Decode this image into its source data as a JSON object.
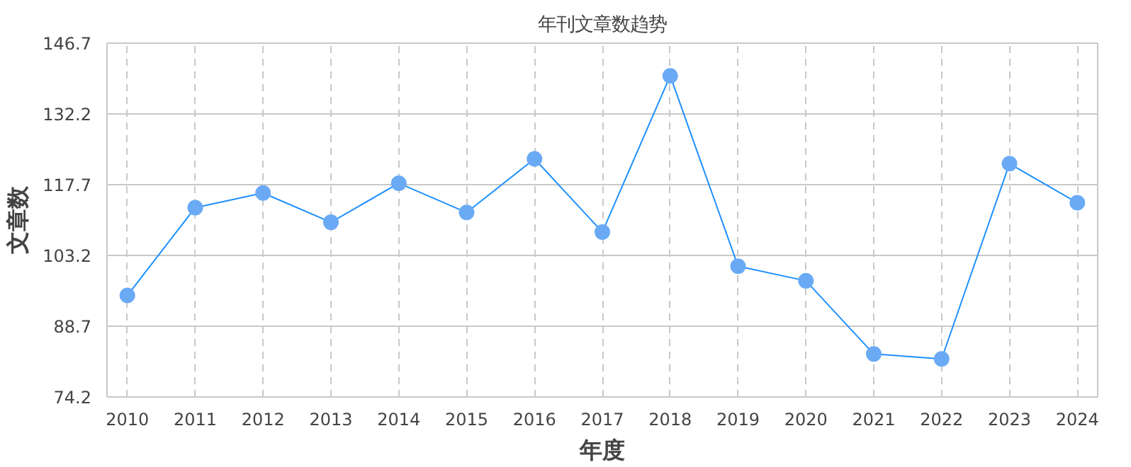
{
  "chart_data": {
    "type": "line",
    "title": "年刊文章数趋势",
    "xlabel": "年度",
    "ylabel": "文章数",
    "x": [
      2010,
      2011,
      2012,
      2013,
      2014,
      2015,
      2016,
      2017,
      2018,
      2019,
      2020,
      2021,
      2022,
      2023,
      2024
    ],
    "series": [
      {
        "color": "#1e90ff",
        "values": [
          95,
          113,
          116,
          110,
          118,
          112,
          123,
          108,
          140,
          101,
          98,
          83,
          82,
          122,
          114
        ]
      }
    ],
    "xlim": [
      2009.7,
      2024.3
    ],
    "xticks": [
      2010,
      2011,
      2012,
      2013,
      2014,
      2015,
      2016,
      2017,
      2018,
      2019,
      2020,
      2021,
      2022,
      2023,
      2024
    ],
    "ylim": [
      74.2,
      146.7
    ],
    "yticks": [
      74.2,
      88.7,
      103.2,
      117.7,
      132.2,
      146.7
    ],
    "grid": true,
    "marker": "circle",
    "line_style": "solid"
  }
}
